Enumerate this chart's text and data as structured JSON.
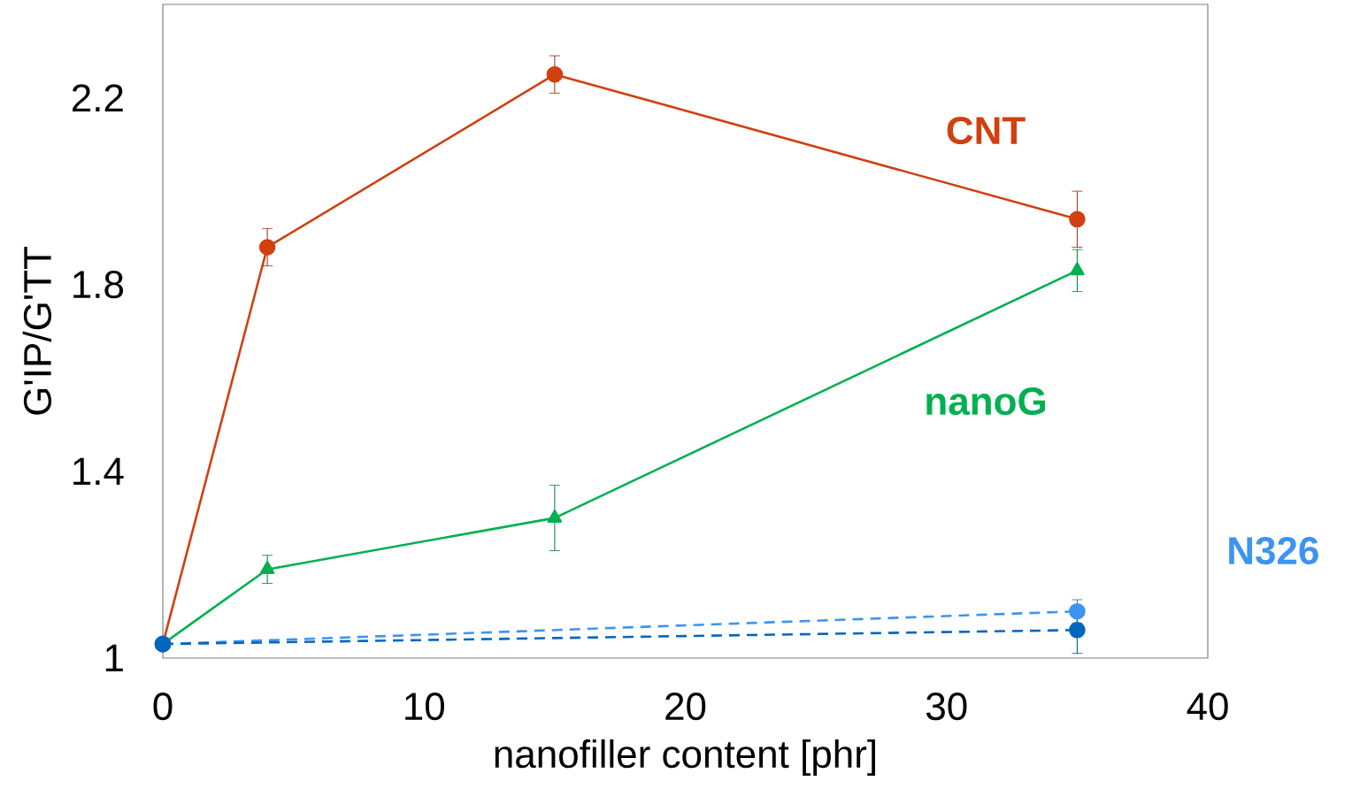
{
  "chart_data": {
    "type": "line",
    "xlabel": "nanofiller content [phr]",
    "ylabel": "G'IP/G'TT",
    "xlim": [
      0,
      40
    ],
    "ylim": [
      1,
      2.4
    ],
    "xticks": [
      0,
      10,
      20,
      30,
      40
    ],
    "yticks": [
      1,
      1.4,
      1.8,
      2.2
    ],
    "grid": false,
    "legend": false,
    "series": [
      {
        "name": "CNT",
        "color": "#d04010",
        "marker": "circle",
        "line_style": "solid",
        "x": [
          0,
          4,
          15,
          35
        ],
        "values": [
          1.03,
          1.88,
          2.25,
          1.94
        ],
        "errors": [
          null,
          0.04,
          0.04,
          0.06
        ]
      },
      {
        "name": "nanoG",
        "color": "#00b050",
        "marker": "triangle",
        "line_style": "solid",
        "x": [
          0,
          4,
          15,
          35
        ],
        "values": [
          1.03,
          1.19,
          1.3,
          1.83
        ],
        "errors": [
          null,
          0.03,
          0.07,
          0.045
        ]
      },
      {
        "name": "N326",
        "color": "#3d94f0",
        "marker": "circle",
        "line_style": "dashed",
        "x": [
          0,
          35
        ],
        "values": [
          1.03,
          1.1
        ],
        "errors": [
          null,
          0.025
        ]
      },
      {
        "color": "#0066c0",
        "marker": "circle",
        "line_style": "dashed",
        "x": [
          0,
          35
        ],
        "values": [
          1.03,
          1.06
        ],
        "errors": [
          null,
          0.05
        ]
      }
    ]
  }
}
